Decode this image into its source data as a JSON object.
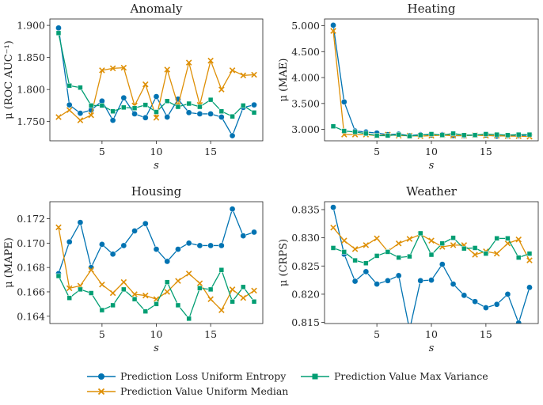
{
  "chart_data": [
    {
      "type": "line",
      "title": "Anomaly",
      "xlabel": "s",
      "ylabel": "μ (ROC AUC⁻¹)",
      "xlim": [
        0.2,
        19.8
      ],
      "ylim": [
        1.72,
        1.91
      ],
      "xticks": [
        5,
        10,
        15
      ],
      "xtick_labels": [
        "5",
        "10",
        "15"
      ],
      "yticks": [
        1.75,
        1.8,
        1.85,
        1.9
      ],
      "ytick_labels": [
        "1.750",
        "1.800",
        "1.850",
        "1.900"
      ],
      "x": [
        1,
        2,
        3,
        4,
        5,
        6,
        7,
        8,
        9,
        10,
        11,
        12,
        13,
        14,
        15,
        16,
        17,
        18,
        19
      ],
      "series": [
        {
          "name": "Prediction Loss Uniform Entropy",
          "values": [
            1.896,
            1.776,
            1.763,
            1.768,
            1.782,
            1.752,
            1.787,
            1.762,
            1.756,
            1.789,
            1.757,
            1.785,
            1.764,
            1.762,
            1.762,
            1.757,
            1.728,
            1.772,
            1.776
          ]
        },
        {
          "name": "Prediction Value Uniform Median",
          "values": [
            1.757,
            1.768,
            1.752,
            1.76,
            1.83,
            1.833,
            1.834,
            1.775,
            1.808,
            1.756,
            1.831,
            1.775,
            1.842,
            1.776,
            1.845,
            1.8,
            1.83,
            1.822,
            1.823
          ]
        },
        {
          "name": "Prediction Value Max Variance",
          "values": [
            1.888,
            1.806,
            1.803,
            1.775,
            1.775,
            1.766,
            1.772,
            1.771,
            1.776,
            1.765,
            1.782,
            1.773,
            1.778,
            1.773,
            1.784,
            1.766,
            1.758,
            1.775,
            1.764
          ]
        }
      ]
    },
    {
      "type": "line",
      "title": "Heating",
      "xlabel": "s",
      "ylabel": "μ (MAE)",
      "xlim": [
        0.2,
        19.8
      ],
      "ylim": [
        2.78,
        5.13
      ],
      "xticks": [
        5,
        10,
        15
      ],
      "xtick_labels": [
        "5",
        "10",
        "15"
      ],
      "yticks": [
        3.0,
        3.5,
        4.0,
        4.5,
        5.0
      ],
      "ytick_labels": [
        "3.000",
        "3.500",
        "4.000",
        "4.500",
        "5.000"
      ],
      "x": [
        1,
        2,
        3,
        4,
        5,
        6,
        7,
        8,
        9,
        10,
        11,
        12,
        13,
        14,
        15,
        16,
        17,
        18,
        19
      ],
      "series": [
        {
          "name": "Prediction Loss Uniform Entropy",
          "values": [
            5.01,
            3.53,
            2.97,
            2.95,
            2.93,
            2.9,
            2.91,
            2.88,
            2.9,
            2.89,
            2.9,
            2.88,
            2.88,
            2.89,
            2.89,
            2.87,
            2.88,
            2.88,
            2.89
          ]
        },
        {
          "name": "Prediction Value Uniform Median",
          "values": [
            4.9,
            2.9,
            2.9,
            2.9,
            2.88,
            2.9,
            2.88,
            2.88,
            2.87,
            2.88,
            2.89,
            2.88,
            2.88,
            2.89,
            2.88,
            2.88,
            2.87,
            2.87,
            2.86
          ]
        },
        {
          "name": "Prediction Value Max Variance",
          "values": [
            3.06,
            2.97,
            2.95,
            2.92,
            2.88,
            2.88,
            2.9,
            2.87,
            2.89,
            2.91,
            2.89,
            2.92,
            2.89,
            2.89,
            2.91,
            2.9,
            2.89,
            2.9,
            2.9
          ]
        }
      ]
    },
    {
      "type": "line",
      "title": "Housing",
      "xlabel": "s",
      "ylabel": "μ (MAPE)",
      "xlim": [
        0.2,
        19.8
      ],
      "ylim": [
        0.1634,
        0.1734
      ],
      "xticks": [
        5,
        10,
        15
      ],
      "xtick_labels": [
        "5",
        "10",
        "15"
      ],
      "yticks": [
        0.164,
        0.166,
        0.168,
        0.17,
        0.172
      ],
      "ytick_labels": [
        "0.164",
        "0.166",
        "0.168",
        "0.170",
        "0.172"
      ],
      "x": [
        1,
        2,
        3,
        4,
        5,
        6,
        7,
        8,
        9,
        10,
        11,
        12,
        13,
        14,
        15,
        16,
        17,
        18,
        19
      ],
      "series": [
        {
          "name": "Prediction Loss Uniform Entropy",
          "values": [
            0.1675,
            0.1701,
            0.1717,
            0.168,
            0.1699,
            0.1691,
            0.1698,
            0.171,
            0.1716,
            0.1695,
            0.1685,
            0.1695,
            0.17,
            0.1698,
            0.1698,
            0.1698,
            0.1728,
            0.1706,
            0.1709
          ]
        },
        {
          "name": "Prediction Value Uniform Median",
          "values": [
            0.1713,
            0.1663,
            0.1665,
            0.1678,
            0.1666,
            0.1659,
            0.1668,
            0.1658,
            0.1657,
            0.1654,
            0.166,
            0.1669,
            0.1675,
            0.1667,
            0.1654,
            0.1645,
            0.1662,
            0.1655,
            0.1661
          ]
        },
        {
          "name": "Prediction Value Max Variance",
          "values": [
            0.1673,
            0.1655,
            0.1662,
            0.1659,
            0.1645,
            0.1649,
            0.1662,
            0.1654,
            0.1644,
            0.165,
            0.1668,
            0.1649,
            0.1638,
            0.1663,
            0.1662,
            0.1678,
            0.1652,
            0.1664,
            0.1652
          ]
        }
      ]
    },
    {
      "type": "line",
      "title": "Weather",
      "xlabel": "s",
      "ylabel": "μ (CRPS)",
      "xlim": [
        0.2,
        19.8
      ],
      "ylim": [
        0.8148,
        0.8364
      ],
      "xticks": [
        5,
        10,
        15
      ],
      "xtick_labels": [
        "5",
        "10",
        "15"
      ],
      "yticks": [
        0.815,
        0.82,
        0.825,
        0.83,
        0.835
      ],
      "ytick_labels": [
        "0.815",
        "0.820",
        "0.825",
        "0.830",
        "0.835"
      ],
      "x": [
        1,
        2,
        3,
        4,
        5,
        6,
        7,
        8,
        9,
        10,
        11,
        12,
        13,
        14,
        15,
        16,
        17,
        18,
        19
      ],
      "series": [
        {
          "name": "Prediction Loss Uniform Entropy",
          "values": [
            0.8354,
            0.8271,
            0.8223,
            0.824,
            0.8218,
            0.8224,
            0.8233,
            0.8137,
            0.8224,
            0.8225,
            0.8253,
            0.8218,
            0.8198,
            0.8187,
            0.8176,
            0.8182,
            0.82,
            0.8149,
            0.8212
          ]
        },
        {
          "name": "Prediction Value Uniform Median",
          "values": [
            0.8318,
            0.8295,
            0.828,
            0.8287,
            0.8299,
            0.8276,
            0.829,
            0.8298,
            0.8306,
            0.8295,
            0.8284,
            0.8287,
            0.8287,
            0.827,
            0.8276,
            0.8272,
            0.829,
            0.8297,
            0.826
          ]
        },
        {
          "name": "Prediction Value Max Variance",
          "values": [
            0.8282,
            0.8275,
            0.826,
            0.8255,
            0.8268,
            0.8275,
            0.8265,
            0.8267,
            0.8308,
            0.827,
            0.829,
            0.83,
            0.8281,
            0.8282,
            0.8272,
            0.8299,
            0.8299,
            0.8265,
            0.8272
          ]
        }
      ]
    }
  ],
  "legend": {
    "placement": "bottom-center",
    "items": [
      {
        "label": "Prediction Loss Uniform Entropy",
        "color": "#0173b2",
        "marker": "circle"
      },
      {
        "label": "Prediction Value Uniform Median",
        "color": "#de8f05",
        "marker": "x"
      },
      {
        "label": "Prediction Value Max Variance",
        "color": "#029e73",
        "marker": "square"
      }
    ]
  }
}
